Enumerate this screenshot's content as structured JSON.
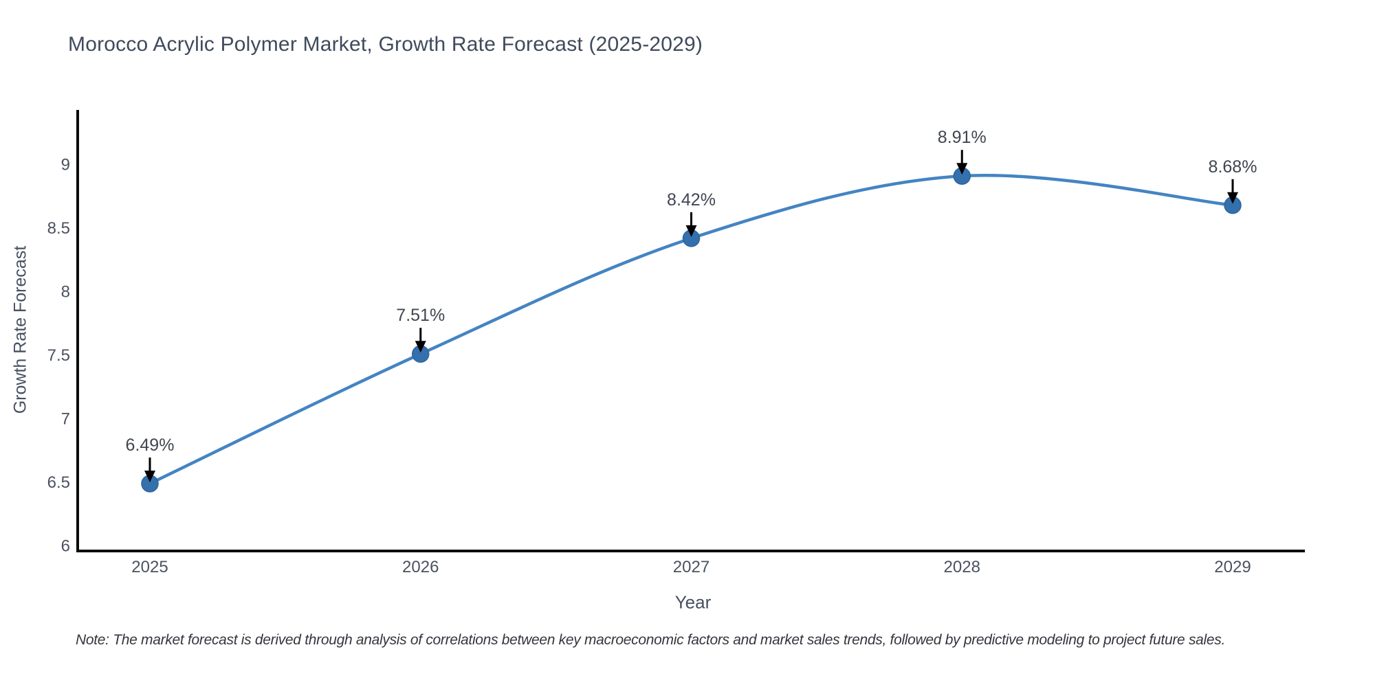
{
  "note": {
    "text": "Note: The market forecast is derived through analysis of correlations between key macroeconomic factors and market sales trends, followed by predictive modeling to project future sales."
  },
  "chart_data": {
    "type": "line",
    "title": "Morocco Acrylic Polymer Market, Growth Rate Forecast (2025-2029)",
    "xlabel": "Year",
    "ylabel": "Growth Rate Forecast",
    "categories": [
      "2025",
      "2026",
      "2027",
      "2028",
      "2029"
    ],
    "series": [
      {
        "name": "Growth Rate Forecast",
        "values": [
          6.49,
          7.51,
          8.42,
          8.91,
          8.68
        ]
      }
    ],
    "point_labels": [
      "6.49%",
      "7.51%",
      "8.42%",
      "8.91%",
      "8.68%"
    ],
    "yticks": [
      6,
      6.5,
      7,
      7.5,
      8,
      8.5,
      9
    ],
    "ytick_labels": [
      "6",
      "6.5",
      "7",
      "7.5",
      "8",
      "8.5",
      "9"
    ],
    "ylim": [
      5.96,
      9.43
    ],
    "grid": false,
    "legend_position": "none",
    "line_shape": "spline",
    "annotations_have_arrows": true,
    "colors": {
      "line": "#4484C2",
      "marker": "#3470AC",
      "marker_edge": "#2D659F",
      "axis_line": "#0a0a0a",
      "arrow": "#000000",
      "tick_text": "#4a5260",
      "annotation_text": "#40454f",
      "title_text": "#3f4a5c",
      "note_text": "#33363d"
    }
  }
}
